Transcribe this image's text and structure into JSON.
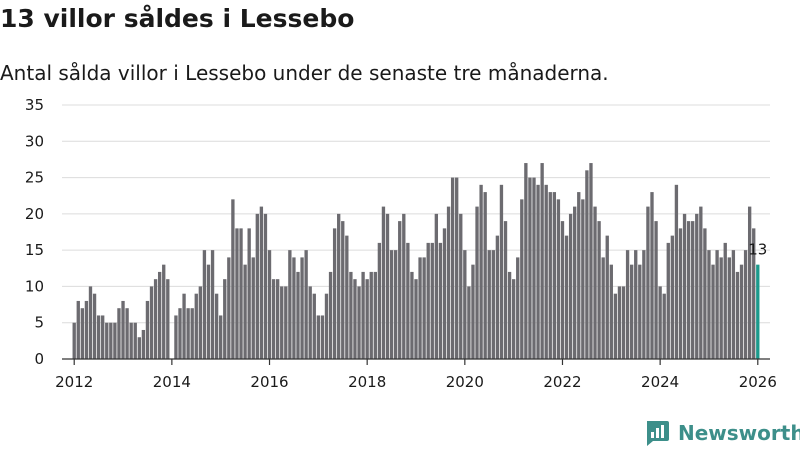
{
  "title": "13 villor såldes i Lessebo",
  "subtitle": "Antal sålda villor i Lessebo under de senaste tre månaderna.",
  "brand": {
    "name": "Newsworthy",
    "icon": "newsworthy-logo-icon",
    "color": "#3d8f8a"
  },
  "colors": {
    "bar": "#6c6b70",
    "highlight": "#1c9a8c",
    "grid": "#dcdcdc"
  },
  "chart_data": {
    "type": "bar",
    "title": "13 villor såldes i Lessebo",
    "xlabel": "",
    "ylabel": "",
    "ylim": [
      0,
      35
    ],
    "yticks": [
      0,
      5,
      10,
      15,
      20,
      25,
      30,
      35
    ],
    "xlim": [
      2011.75,
      2026.25
    ],
    "xticks": [
      2012,
      2014,
      2016,
      2018,
      2020,
      2022,
      2024,
      2026
    ],
    "start": {
      "year": 2012,
      "month": 1
    },
    "series": [
      {
        "name": "Sålda villor",
        "values": [
          5,
          8,
          7,
          8,
          10,
          9,
          6,
          6,
          5,
          5,
          5,
          7,
          8,
          7,
          5,
          5,
          3,
          4,
          8,
          10,
          11,
          12,
          13,
          11,
          0,
          6,
          7,
          9,
          7,
          7,
          9,
          10,
          15,
          13,
          15,
          9,
          6,
          11,
          14,
          22,
          18,
          18,
          13,
          18,
          14,
          20,
          21,
          20,
          15,
          11,
          11,
          10,
          10,
          15,
          14,
          12,
          14,
          15,
          10,
          9,
          6,
          6,
          9,
          12,
          18,
          20,
          19,
          17,
          12,
          11,
          10,
          12,
          11,
          12,
          12,
          16,
          21,
          20,
          15,
          15,
          19,
          20,
          16,
          12,
          11,
          14,
          14,
          16,
          16,
          20,
          16,
          18,
          21,
          25,
          25,
          20,
          15,
          10,
          13,
          21,
          24,
          23,
          15,
          15,
          17,
          24,
          19,
          12,
          11,
          14,
          22,
          27,
          25,
          25,
          24,
          27,
          24,
          23,
          23,
          22,
          19,
          17,
          20,
          21,
          23,
          22,
          26,
          27,
          21,
          19,
          14,
          17,
          13,
          9,
          10,
          10,
          15,
          13,
          15,
          13,
          15,
          21,
          23,
          19,
          10,
          9,
          16,
          17,
          24,
          18,
          20,
          19,
          19,
          20,
          21,
          18,
          15,
          13,
          15,
          14,
          16,
          14,
          15,
          12,
          13,
          15,
          21,
          18,
          13
        ]
      }
    ],
    "annotations": [
      {
        "label": "13",
        "value": 13,
        "at": "last"
      }
    ]
  }
}
